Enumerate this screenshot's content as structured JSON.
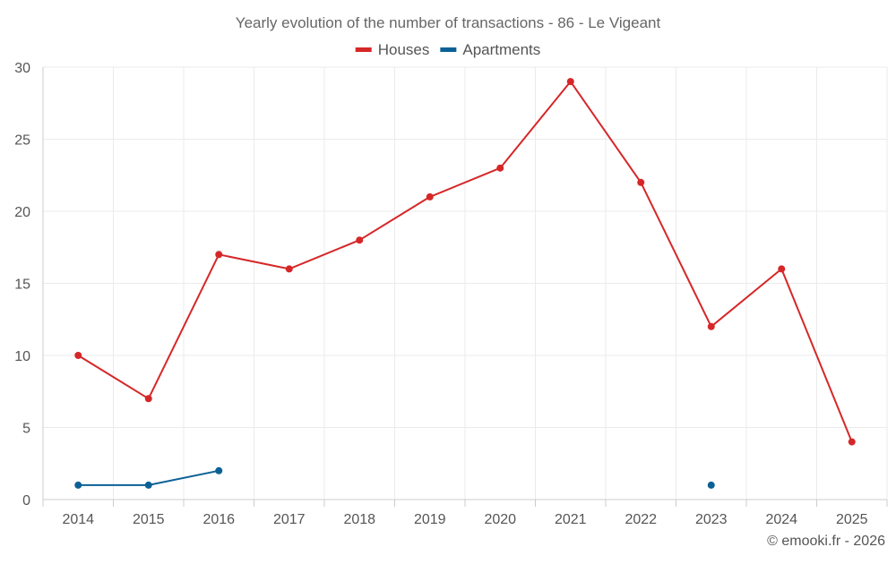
{
  "chart_data": {
    "type": "line",
    "title": "Yearly evolution of the number of transactions - 86 - Le Vigeant",
    "xlabel": "",
    "ylabel": "",
    "categories": [
      "2014",
      "2015",
      "2016",
      "2017",
      "2018",
      "2019",
      "2020",
      "2021",
      "2022",
      "2023",
      "2024",
      "2025"
    ],
    "ylim": [
      0,
      30
    ],
    "yticks": [
      0,
      5,
      10,
      15,
      20,
      25,
      30
    ],
    "grid": true,
    "legend_position": "top-center",
    "series": [
      {
        "name": "Houses",
        "color": "#d62728",
        "values": [
          10,
          7,
          17,
          16,
          18,
          21,
          23,
          29,
          22,
          12,
          16,
          4
        ]
      },
      {
        "name": "Apartments",
        "color": "#0b6196",
        "values": [
          1,
          1,
          2,
          null,
          null,
          null,
          null,
          null,
          null,
          1,
          null,
          null
        ]
      }
    ],
    "credit": "© emooki.fr - 2026"
  }
}
